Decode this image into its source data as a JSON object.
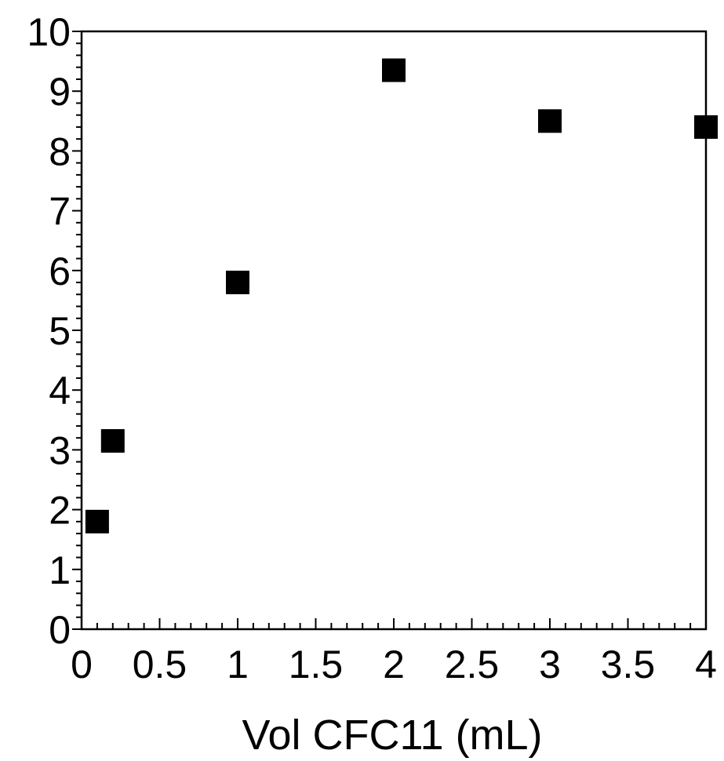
{
  "chart_data": {
    "type": "scatter",
    "title": "",
    "xlabel": "Vol CFC11 (mL)",
    "ylabel": "",
    "xlim": [
      0,
      4
    ],
    "ylim": [
      0,
      10
    ],
    "x_ticks": [
      "0",
      "0.5",
      "1",
      "1.5",
      "2",
      "2.5",
      "3",
      "3.5",
      "4"
    ],
    "y_ticks": [
      "0",
      "1",
      "2",
      "3",
      "4",
      "5",
      "6",
      "7",
      "8",
      "9",
      "10"
    ],
    "grid": false,
    "legend": "none",
    "marker": "square",
    "marker_color": "#000000",
    "series": [
      {
        "x": [
          0.1,
          0.2,
          1.0,
          2.0,
          3.0,
          4.0
        ],
        "y": [
          1.8,
          3.15,
          5.8,
          9.35,
          8.5,
          8.4
        ]
      }
    ]
  }
}
